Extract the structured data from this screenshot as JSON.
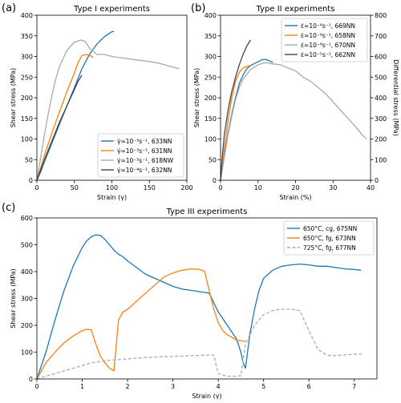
{
  "chart_data": [
    {
      "panel_label": "(a)",
      "type": "line",
      "title": "Type I experiments",
      "xlabel": "Strain (γ)",
      "ylabel": "Shear stress (MPa)",
      "xlim": [
        0,
        200
      ],
      "ylim": [
        0,
        400
      ],
      "xticks": [
        0,
        50,
        100,
        150,
        200
      ],
      "yticks": [
        0,
        50,
        100,
        150,
        200,
        250,
        300,
        350,
        400
      ],
      "legend_position": "lower-right",
      "grid": false,
      "series": [
        {
          "name": "γ̇≈10⁻³s⁻¹, 633NN",
          "color": "#1f77b4",
          "x": [
            0,
            5,
            10,
            20,
            30,
            40,
            50,
            60,
            70,
            80,
            90,
            100,
            103
          ],
          "y": [
            0,
            20,
            45,
            90,
            135,
            180,
            225,
            270,
            305,
            330,
            348,
            360,
            361
          ]
        },
        {
          "name": "γ̇≈10⁻³s⁻¹, 631NN",
          "color": "#ff7f0e",
          "x": [
            0,
            5,
            10,
            20,
            30,
            40,
            50,
            55,
            60,
            65,
            70,
            73,
            75
          ],
          "y": [
            0,
            30,
            60,
            115,
            165,
            215,
            260,
            285,
            302,
            305,
            303,
            300,
            297
          ]
        },
        {
          "name": "γ̇≈10⁻³s⁻¹, 618NW",
          "color": "#aaaaaa",
          "x": [
            0,
            5,
            10,
            15,
            20,
            25,
            30,
            40,
            50,
            60,
            65,
            70,
            80,
            90,
            100,
            120,
            140,
            160,
            180,
            190
          ],
          "y": [
            0,
            55,
            110,
            160,
            205,
            245,
            275,
            315,
            335,
            340,
            335,
            320,
            305,
            305,
            300,
            295,
            290,
            285,
            275,
            270
          ]
        },
        {
          "name": "γ̇≈10⁻⁴s⁻¹, 632NN",
          "color": "#444444",
          "x": [
            0,
            5,
            10,
            20,
            30,
            40,
            50,
            55,
            60
          ],
          "y": [
            0,
            25,
            50,
            95,
            140,
            180,
            220,
            240,
            255
          ]
        }
      ]
    },
    {
      "panel_label": "(b)",
      "type": "line",
      "title": "Type II experiments",
      "xlabel": "Strain (%)",
      "ylabel": "Shear stress (MPa)",
      "y2label": "Differential stress (MPa)",
      "xlim": [
        0,
        40
      ],
      "ylim": [
        0,
        400
      ],
      "y2lim": [
        0,
        800
      ],
      "xticks": [
        0,
        10,
        20,
        30,
        40
      ],
      "yticks": [
        0,
        50,
        100,
        150,
        200,
        250,
        300,
        350,
        400
      ],
      "y2ticks": [
        0,
        100,
        200,
        300,
        400,
        500,
        600,
        700,
        800
      ],
      "legend_position": "top-right",
      "grid": false,
      "series": [
        {
          "name": "ε̇≈10⁻⁶s⁻¹, 669NN",
          "color": "#1f77b4",
          "x": [
            0,
            1,
            2,
            3,
            4,
            5,
            6,
            7,
            8,
            9,
            10,
            11,
            12,
            13,
            14
          ],
          "y": [
            0,
            60,
            115,
            160,
            200,
            235,
            255,
            270,
            278,
            283,
            287,
            292,
            293,
            290,
            285
          ]
        },
        {
          "name": "ε̇≈10⁻⁶s⁻¹, 658NN",
          "color": "#ff7f0e",
          "x": [
            0,
            1,
            2,
            3,
            4,
            5,
            6,
            7,
            8
          ],
          "y": [
            0,
            75,
            145,
            200,
            240,
            262,
            272,
            276,
            278
          ]
        },
        {
          "name": "ε̇≈10⁻⁶s⁻¹, 670NN",
          "color": "#aaaaaa",
          "x": [
            0,
            1,
            2,
            3,
            4,
            5,
            6,
            8,
            10,
            12,
            14,
            16,
            18,
            20,
            22,
            24,
            26,
            28,
            30,
            32,
            34,
            36,
            38,
            39
          ],
          "y": [
            0,
            55,
            110,
            155,
            195,
            225,
            245,
            268,
            280,
            285,
            282,
            280,
            272,
            265,
            250,
            240,
            225,
            210,
            190,
            170,
            150,
            130,
            108,
            100
          ]
        },
        {
          "name": "ε̇≈10⁻⁵s⁻¹, 662NN",
          "color": "#444444",
          "x": [
            0,
            0.5,
            1,
            2,
            3,
            4,
            5,
            6,
            7,
            8
          ],
          "y": [
            0,
            60,
            110,
            170,
            215,
            250,
            280,
            305,
            325,
            340
          ]
        }
      ]
    },
    {
      "panel_label": "(c)",
      "type": "line",
      "title": "Type III experiments",
      "xlabel": "Strain (γ)",
      "ylabel": "Shear stress (MPa)",
      "xlim": [
        0,
        7.5
      ],
      "ylim": [
        0,
        600
      ],
      "xticks": [
        0,
        1,
        2,
        3,
        4,
        5,
        6,
        7
      ],
      "yticks": [
        0,
        100,
        200,
        300,
        400,
        500,
        600
      ],
      "legend_position": "top-right",
      "grid": false,
      "series": [
        {
          "name": "650°C, cg, 675NN",
          "color": "#1f77b4",
          "dash": "solid",
          "x": [
            0,
            0.2,
            0.4,
            0.6,
            0.8,
            1.0,
            1.1,
            1.2,
            1.3,
            1.4,
            1.5,
            1.6,
            1.7,
            1.8,
            1.9,
            2.0,
            2.2,
            2.4,
            2.6,
            2.8,
            3.0,
            3.2,
            3.4,
            3.6,
            3.8,
            4.0,
            4.2,
            4.4,
            4.5,
            4.55,
            4.6,
            4.7,
            4.8,
            4.9,
            5.0,
            5.2,
            5.4,
            5.6,
            5.8,
            6.0,
            6.2,
            6.4,
            6.6,
            6.8,
            7.0,
            7.15
          ],
          "y": [
            0,
            100,
            220,
            330,
            420,
            490,
            515,
            530,
            537,
            535,
            520,
            500,
            480,
            465,
            455,
            440,
            415,
            390,
            375,
            360,
            345,
            335,
            330,
            325,
            320,
            250,
            200,
            150,
            100,
            60,
            40,
            170,
            260,
            330,
            375,
            405,
            420,
            425,
            428,
            425,
            420,
            420,
            415,
            410,
            408,
            405
          ]
        },
        {
          "name": "650°C, fg, 673NN",
          "color": "#ff7f0e",
          "dash": "solid",
          "x": [
            0,
            0.1,
            0.2,
            0.4,
            0.6,
            0.8,
            1.0,
            1.1,
            1.2,
            1.3,
            1.4,
            1.5,
            1.6,
            1.7,
            1.8,
            1.9,
            2.0,
            2.2,
            2.4,
            2.6,
            2.8,
            3.0,
            3.2,
            3.4,
            3.6,
            3.7,
            3.8,
            3.9,
            4.0,
            4.1,
            4.2,
            4.4,
            4.6
          ],
          "y": [
            0,
            30,
            60,
            100,
            135,
            160,
            180,
            185,
            183,
            130,
            85,
            60,
            40,
            30,
            220,
            250,
            260,
            290,
            320,
            350,
            380,
            395,
            405,
            410,
            408,
            400,
            330,
            260,
            210,
            180,
            165,
            145,
            140
          ]
        },
        {
          "name": "725°C, fg, 677NN",
          "color": "#aaaaaa",
          "dash": "dashed",
          "x": [
            0,
            0.2,
            0.4,
            0.6,
            0.8,
            1.0,
            1.2,
            1.4,
            1.6,
            1.8,
            2.0,
            2.4,
            2.8,
            3.2,
            3.6,
            3.9,
            4.0,
            4.2,
            4.4,
            4.5,
            4.6,
            4.8,
            5.0,
            5.2,
            5.4,
            5.6,
            5.8,
            6.0,
            6.2,
            6.4,
            6.6,
            6.8,
            7.0,
            7.2
          ],
          "y": [
            0,
            10,
            20,
            30,
            40,
            50,
            60,
            65,
            70,
            72,
            75,
            80,
            83,
            85,
            88,
            90,
            20,
            10,
            10,
            12,
            130,
            200,
            240,
            255,
            260,
            260,
            255,
            180,
            110,
            88,
            87,
            90,
            92,
            93
          ]
        }
      ]
    }
  ]
}
